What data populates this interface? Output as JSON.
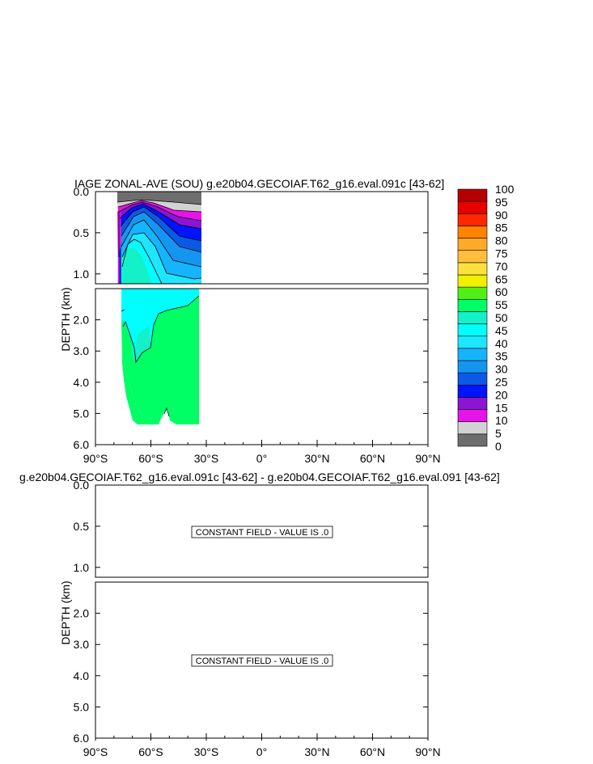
{
  "chart_data": [
    {
      "type": "contour",
      "title": "IAGE ZONAL-AVE (SOU) g.e20b04.GECOIAF.T62_g16.eval.091c [43-62]",
      "ylabel": "DEPTH (km)",
      "x_ticks": [
        "90°S",
        "60°S",
        "30°S",
        "0°",
        "30°N",
        "60°N",
        "90°N"
      ],
      "x_range": [
        -90,
        90
      ],
      "y_ticks_upper": [
        "0.0",
        "0.5",
        "1.0"
      ],
      "y_ticks_lower": [
        "2.0",
        "3.0",
        "4.0",
        "5.0",
        "6.0"
      ],
      "y_range_km": [
        0,
        6
      ],
      "colorbar_levels": [
        "0",
        "5",
        "10",
        "15",
        "20",
        "25",
        "30",
        "35",
        "40",
        "45",
        "50",
        "55",
        "60",
        "65",
        "70",
        "75",
        "80",
        "85",
        "90",
        "95",
        "100"
      ],
      "colorbar_colors": [
        "#6e6e6e",
        "#d2d2d2",
        "#e614e6",
        "#8c14d2",
        "#0014ff",
        "#0a5ae6",
        "#1496f0",
        "#14b4ff",
        "#1ee6ff",
        "#00ffff",
        "#14f0c8",
        "#00ff64",
        "#50f014",
        "#f0f000",
        "#fae13c",
        "#ffbe3c",
        "#ffaa28",
        "#ff8200",
        "#ff2800",
        "#e60000",
        "#b40000"
      ],
      "data_extent": {
        "lat": [
          -78,
          -34
        ],
        "max_depth_km": 5.4
      }
    },
    {
      "type": "contour",
      "title": "g.e20b04.GECOIAF.T62_g16.eval.091c [43-62] - g.e20b04.GECOIAF.T62_g16.eval.091 [43-62]",
      "ylabel": "DEPTH (km)",
      "x_ticks": [
        "90°S",
        "60°S",
        "30°S",
        "0°",
        "30°N",
        "60°N",
        "90°N"
      ],
      "y_ticks_upper": [
        "0.0",
        "0.5",
        "1.0"
      ],
      "y_ticks_lower": [
        "2.0",
        "3.0",
        "4.0",
        "5.0",
        "6.0"
      ],
      "annotations": [
        "CONSTANT FIELD - VALUE IS .0",
        "CONSTANT FIELD - VALUE IS .0"
      ]
    }
  ]
}
